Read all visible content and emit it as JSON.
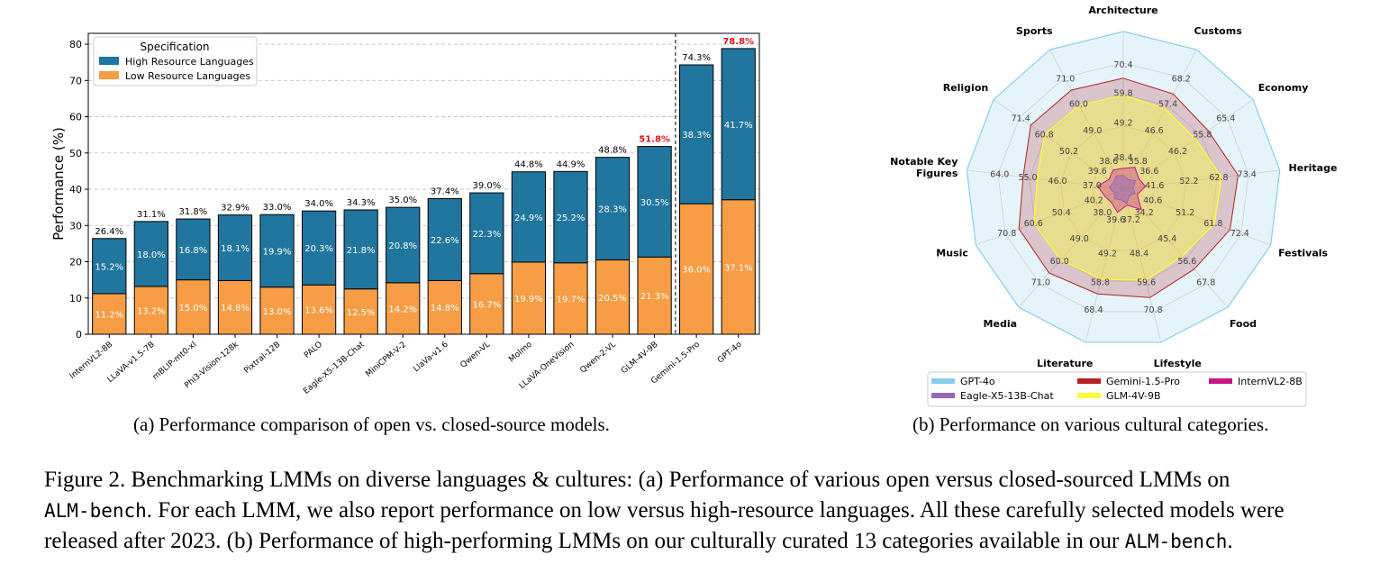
{
  "chart_data": [
    {
      "type": "bar",
      "stacked": true,
      "ylabel": "Performance (%)",
      "ylim": [
        0,
        83
      ],
      "yticks": [
        0,
        10,
        20,
        30,
        40,
        50,
        60,
        70,
        80
      ],
      "grid": true,
      "legend": {
        "title": "Specification",
        "placement": "top-left"
      },
      "categories": [
        "InternVL2-8B",
        "LLaVA-v1.5-7B",
        "mBLIP-mt0-xl",
        "Phi3-Vision-128k",
        "Pixtral-12B",
        "PALO",
        "Eagle-X5-13B-Chat",
        "MiniCPM-V-2",
        "LlaVa-v1.6",
        "Qwen-VL",
        "Molmo",
        "LLaVA-OneVision",
        "Qwen-2-VL",
        "GLM-4V-9B",
        "Gemini-1.5-Pro",
        "GPT-4o"
      ],
      "series": [
        {
          "name": "Low Resource Languages",
          "color": "#f79d45",
          "values": [
            11.2,
            13.2,
            15.0,
            14.8,
            13.0,
            13.6,
            12.5,
            14.2,
            14.8,
            16.7,
            19.9,
            19.7,
            20.5,
            21.3,
            36.0,
            37.1
          ],
          "labels": [
            "11.2%",
            "13.2%",
            "15.0%",
            "14.8%",
            "13.0%",
            "13.6%",
            "12.5%",
            "14.2%",
            "14.8%",
            "16.7%",
            "19.9%",
            "19.7%",
            "20.5%",
            "21.3%",
            "36.0%",
            "37.1%"
          ]
        },
        {
          "name": "High Resource Languages",
          "color": "#20769e",
          "values": [
            15.2,
            18.0,
            16.8,
            18.1,
            19.9,
            20.3,
            21.8,
            20.8,
            22.6,
            22.3,
            24.9,
            25.2,
            28.3,
            30.5,
            38.3,
            41.7
          ],
          "labels": [
            "15.2%",
            "18.0%",
            "16.8%",
            "18.1%",
            "19.9%",
            "20.3%",
            "21.8%",
            "20.8%",
            "22.6%",
            "22.3%",
            "24.9%",
            "25.2%",
            "28.3%",
            "30.5%",
            "38.3%",
            "41.7%"
          ]
        }
      ],
      "totals": [
        26.4,
        31.1,
        31.8,
        32.9,
        33.0,
        34.0,
        34.3,
        35.0,
        37.4,
        39.0,
        44.8,
        44.9,
        48.8,
        51.8,
        74.3,
        78.8
      ],
      "total_labels": [
        "26.4%",
        "31.1%",
        "31.8%",
        "32.9%",
        "33.0%",
        "34.0%",
        "34.3%",
        "35.0%",
        "37.4%",
        "39.0%",
        "44.8%",
        "44.9%",
        "48.8%",
        "51.8%",
        "74.3%",
        "78.8%"
      ],
      "highlight_color": "#e3141c",
      "highlighted_totals": [
        "GLM-4V-9B",
        "GPT-4o"
      ],
      "divider_after": "GLM-4V-9B"
    },
    {
      "type": "radar",
      "axes": [
        "Architecture",
        "Customs",
        "Economy",
        "Heritage",
        "Festivals",
        "Food",
        "Lifestyle",
        "Literature",
        "Media",
        "Music",
        "Notable Key Figures",
        "Religion",
        "Sports"
      ],
      "rlim": [
        0,
        100
      ],
      "grid": true,
      "legend": {
        "placement": "bottom"
      },
      "series": [
        {
          "name": "GPT-4o",
          "color": "#87ceeb",
          "values": [
            null,
            null,
            null,
            null,
            null,
            null,
            null,
            null,
            null,
            null,
            null,
            null,
            null
          ]
        },
        {
          "name": "Gemini-1.5-Pro",
          "color": "#b22222",
          "values": [
            70.4,
            68.2,
            65.4,
            73.4,
            72.4,
            67.8,
            70.8,
            68.4,
            71.0,
            70.8,
            64.0,
            71.4,
            71.0
          ]
        },
        {
          "name": "InternVL2-8B",
          "color": "#c71585",
          "values": [
            38.4,
            35.8,
            36.6,
            41.6,
            40.6,
            34.2,
            37.2,
            39.6,
            38.0,
            40.2,
            37.0,
            39.6,
            38.6
          ]
        },
        {
          "name": "Eagle-X5-13B-Chat",
          "color": "#9467bd",
          "values": [
            null,
            null,
            null,
            null,
            null,
            null,
            null,
            null,
            null,
            null,
            null,
            null,
            null
          ]
        },
        {
          "name": "GLM-4V-9B",
          "color": "#ffff33",
          "values": [
            59.8,
            57.4,
            55.8,
            62.8,
            61.8,
            56.6,
            59.6,
            58.8,
            60.0,
            60.6,
            55.0,
            60.8,
            60.0
          ]
        }
      ],
      "value_labels": [
        [
          "70.4",
          "59.8",
          "49.2",
          "38.4"
        ],
        [
          "68.2",
          "57.4",
          "46.6",
          "35.8"
        ],
        [
          "65.4",
          "55.8",
          "46.2",
          "36.6"
        ],
        [
          "73.4",
          "62.8",
          "52.2",
          "41.6"
        ],
        [
          "72.4",
          "61.8",
          "51.2",
          "40.6"
        ],
        [
          "67.8",
          "56.6",
          "45.4",
          "34.2"
        ],
        [
          "70.8",
          "59.6",
          "48.4",
          "37.2"
        ],
        [
          "68.4",
          "58.8",
          "49.2",
          "39.6"
        ],
        [
          "71.0",
          "60.0",
          "49.0",
          "38.0"
        ],
        [
          "70.8",
          "60.6",
          "50.4",
          "40.2"
        ],
        [
          "64.0",
          "55.0",
          "46.0",
          "37.0"
        ],
        [
          "71.4",
          "60.8",
          "50.2",
          "39.6"
        ],
        [
          "71.0",
          "60.0",
          "49.0",
          "38.6"
        ]
      ]
    }
  ],
  "captions": {
    "subcaption_a": "(a) Performance comparison of open vs. closed-source models.",
    "subcaption_b": "(b) Performance on various cultural categories.",
    "figure_line1": "Figure 2.  Benchmarking LMMs on diverse languages & cultures: (a) Performance of various open versus closed-sourced LMMs on",
    "figure_line2_code": "ALM-bench",
    "figure_line2_rest": ". For each LMM, we also report performance on low versus high-resource languages. All these carefully selected models were",
    "figure_line3_pre": "released after 2023. (b) Performance of high-performing LMMs on our culturally curated 13 categories available in our ",
    "figure_line3_code": "ALM-bench",
    "figure_line3_end": "."
  }
}
